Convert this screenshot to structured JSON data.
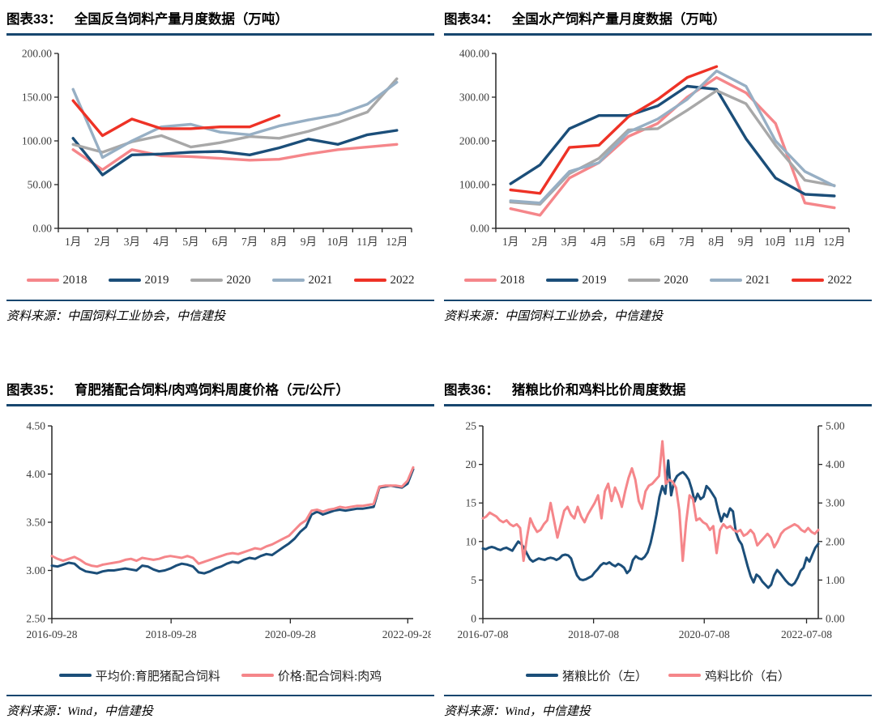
{
  "figures": [
    {
      "label": "图表33：",
      "title": "全国反刍饲料产量月度数据（万吨）",
      "source": "资料来源：中国饲料工业协会，中信建投",
      "chart_data": {
        "type": "line",
        "x_mode": "category",
        "categories": [
          "1月",
          "2月",
          "3月",
          "4月",
          "5月",
          "6月",
          "7月",
          "8月",
          "9月",
          "10月",
          "11月",
          "12月"
        ],
        "ylim": [
          0,
          200
        ],
        "yticks": [
          {
            "v": 0,
            "label": "0.00"
          },
          {
            "v": 50,
            "label": "50.00"
          },
          {
            "v": 100,
            "label": "100.00"
          },
          {
            "v": 150,
            "label": "150.00"
          },
          {
            "v": 200,
            "label": "200.00"
          }
        ],
        "legend_position": "bottom",
        "grid": false,
        "series": [
          {
            "name": "2018",
            "color": "#F5868A",
            "values": [
              90,
              67,
              90,
              83,
              82,
              80,
              78,
              79,
              85,
              90,
              93,
              96
            ]
          },
          {
            "name": "2019",
            "color": "#1B4E79",
            "values": [
              103,
              61,
              84,
              85,
              87,
              88,
              84,
              92,
              102,
              96,
              107,
              112
            ]
          },
          {
            "name": "2020",
            "color": "#A8A8A8",
            "values": [
              96,
              87,
              99,
              106,
              93,
              98,
              105,
              103,
              111,
              121,
              133,
              171
            ]
          },
          {
            "name": "2021",
            "color": "#97AFC4",
            "values": [
              159,
              81,
              100,
              116,
              119,
              110,
              107,
              117,
              124,
              130,
              142,
              167
            ]
          },
          {
            "name": "2022",
            "color": "#EE3226",
            "values": [
              146,
              106,
              125,
              114,
              114,
              116,
              116,
              129
            ]
          }
        ]
      }
    },
    {
      "label": "图表34：",
      "title": "全国水产饲料产量月度数据（万吨）",
      "source": "资料来源：中国饲料工业协会，中信建投",
      "chart_data": {
        "type": "line",
        "x_mode": "category",
        "categories": [
          "1月",
          "2月",
          "3月",
          "4月",
          "5月",
          "6月",
          "7月",
          "8月",
          "9月",
          "10月",
          "11月",
          "12月"
        ],
        "ylim": [
          0,
          400
        ],
        "yticks": [
          {
            "v": 0,
            "label": "0.00"
          },
          {
            "v": 100,
            "label": "100.00"
          },
          {
            "v": 200,
            "label": "200.00"
          },
          {
            "v": 300,
            "label": "300.00"
          },
          {
            "v": 400,
            "label": "400.00"
          }
        ],
        "legend_position": "bottom",
        "grid": false,
        "series": [
          {
            "name": "2018",
            "color": "#F5868A",
            "values": [
              45,
              30,
              115,
              150,
              210,
              240,
              300,
              345,
              310,
              240,
              58,
              47
            ]
          },
          {
            "name": "2019",
            "color": "#1B4E79",
            "values": [
              102,
              145,
              228,
              258,
              258,
              280,
              325,
              318,
              205,
              115,
              78,
              74
            ]
          },
          {
            "name": "2020",
            "color": "#A8A8A8",
            "values": [
              60,
              55,
              125,
              160,
              225,
              228,
              270,
              315,
              285,
              190,
              110,
              98
            ]
          },
          {
            "name": "2021",
            "color": "#97AFC4",
            "values": [
              63,
              58,
              130,
              150,
              220,
              250,
              295,
              360,
              325,
              200,
              130,
              97
            ]
          },
          {
            "name": "2022",
            "color": "#EE3226",
            "values": [
              88,
              80,
              185,
              190,
              255,
              295,
              345,
              370
            ]
          }
        ]
      }
    },
    {
      "label": "图表35：",
      "title": "育肥猪配合饲料/肉鸡饲料周度价格（元/公斤）",
      "source": "资料来源：Wind，中信建投",
      "chart_data": {
        "type": "line",
        "x_mode": "linear",
        "xticks": [
          {
            "pos": 0,
            "label": "2016-09-28"
          },
          {
            "pos": 0.33,
            "label": "2018-09-28"
          },
          {
            "pos": 0.66,
            "label": "2020-09-28"
          },
          {
            "pos": 0.985,
            "label": "2022-09-28"
          }
        ],
        "ylim": [
          2.5,
          4.5
        ],
        "yticks": [
          {
            "v": 2.5,
            "label": "2.50"
          },
          {
            "v": 3.0,
            "label": "3.00"
          },
          {
            "v": 3.5,
            "label": "3.50"
          },
          {
            "v": 4.0,
            "label": "4.00"
          },
          {
            "v": 4.5,
            "label": "4.50"
          }
        ],
        "legend_position": "bottom",
        "grid": false,
        "series": [
          {
            "name": "平均价:育肥猪配合饲料",
            "color": "#1B4E79",
            "values": [
              3.05,
              3.04,
              3.06,
              3.08,
              3.07,
              3.02,
              2.99,
              2.98,
              2.97,
              2.99,
              3.0,
              3.0,
              3.01,
              3.02,
              3.01,
              3.0,
              3.05,
              3.04,
              3.01,
              2.99,
              3.0,
              3.02,
              3.05,
              3.07,
              3.06,
              3.04,
              2.98,
              2.97,
              2.99,
              3.02,
              3.04,
              3.07,
              3.09,
              3.08,
              3.11,
              3.13,
              3.12,
              3.15,
              3.17,
              3.16,
              3.2,
              3.24,
              3.28,
              3.33,
              3.4,
              3.45,
              3.58,
              3.61,
              3.58,
              3.6,
              3.62,
              3.63,
              3.62,
              3.63,
              3.64,
              3.64,
              3.65,
              3.66,
              3.86,
              3.87,
              3.88,
              3.87,
              3.86,
              3.9,
              4.05
            ]
          },
          {
            "name": "价格:配合饲料:肉鸡",
            "color": "#F5868A",
            "values": [
              3.15,
              3.12,
              3.1,
              3.12,
              3.14,
              3.11,
              3.07,
              3.05,
              3.04,
              3.06,
              3.07,
              3.08,
              3.09,
              3.11,
              3.12,
              3.1,
              3.13,
              3.12,
              3.11,
              3.12,
              3.14,
              3.15,
              3.14,
              3.13,
              3.15,
              3.13,
              3.07,
              3.09,
              3.11,
              3.13,
              3.15,
              3.17,
              3.18,
              3.17,
              3.19,
              3.21,
              3.23,
              3.22,
              3.25,
              3.27,
              3.3,
              3.33,
              3.36,
              3.42,
              3.48,
              3.52,
              3.62,
              3.63,
              3.61,
              3.63,
              3.64,
              3.66,
              3.65,
              3.66,
              3.67,
              3.67,
              3.68,
              3.69,
              3.87,
              3.88,
              3.88,
              3.88,
              3.87,
              3.93,
              4.07
            ]
          }
        ]
      }
    },
    {
      "label": "图表36：",
      "title": "猪粮比价和鸡料比价周度数据",
      "source": "资料来源：Wind，中信建投",
      "chart_data": {
        "type": "line",
        "x_mode": "linear",
        "xticks": [
          {
            "pos": 0,
            "label": "2016-07-08"
          },
          {
            "pos": 0.33,
            "label": "2018-07-08"
          },
          {
            "pos": 0.66,
            "label": "2020-07-08"
          },
          {
            "pos": 0.965,
            "label": "2022-07-08"
          }
        ],
        "ylim": [
          0,
          25
        ],
        "yticks": [
          {
            "v": 0,
            "label": "0"
          },
          {
            "v": 5,
            "label": "5"
          },
          {
            "v": 10,
            "label": "10"
          },
          {
            "v": 15,
            "label": "15"
          },
          {
            "v": 20,
            "label": "20"
          },
          {
            "v": 25,
            "label": "25"
          }
        ],
        "y2lim": [
          0,
          5
        ],
        "y2ticks": [
          {
            "v": 0,
            "label": "0.00"
          },
          {
            "v": 1,
            "label": "1.00"
          },
          {
            "v": 2,
            "label": "2.00"
          },
          {
            "v": 3,
            "label": "3.00"
          },
          {
            "v": 4,
            "label": "4.00"
          },
          {
            "v": 5,
            "label": "5.00"
          }
        ],
        "legend_position": "bottom",
        "grid": false,
        "series": [
          {
            "name": "猪粮比价（左）",
            "color": "#1B4E79",
            "axis": "left",
            "values": [
              9.1,
              9.0,
              9.2,
              9.3,
              9.2,
              9.0,
              8.9,
              9.1,
              9.2,
              9.0,
              8.8,
              9.4,
              10.0,
              9.7,
              9.2,
              8.4,
              7.7,
              7.4,
              7.6,
              7.8,
              7.7,
              7.6,
              7.8,
              7.9,
              7.8,
              7.6,
              7.8,
              8.2,
              8.3,
              8.2,
              7.8,
              6.6,
              5.6,
              5.1,
              5.0,
              5.1,
              5.3,
              5.5,
              6.0,
              6.4,
              6.9,
              7.2,
              7.1,
              7.3,
              7.0,
              6.8,
              7.1,
              6.9,
              6.6,
              5.9,
              6.3,
              7.6,
              8.1,
              7.8,
              7.7,
              8.0,
              8.6,
              9.8,
              11.5,
              13.5,
              15.8,
              17.2,
              16.2,
              20.5,
              16.0,
              17.8,
              18.5,
              18.8,
              19.0,
              18.6,
              18.0,
              16.8,
              15.2,
              16.2,
              15.5,
              15.8,
              17.2,
              16.8,
              16.2,
              15.6,
              14.0,
              12.6,
              13.6,
              13.2,
              14.3,
              13.9,
              11.2,
              10.2,
              9.6,
              8.2,
              6.8,
              5.5,
              4.7,
              5.7,
              5.4,
              4.8,
              4.4,
              4.0,
              4.4,
              5.6,
              6.3,
              5.9,
              5.4,
              4.9,
              4.5,
              4.3,
              4.6,
              5.3,
              6.2,
              6.6,
              7.9,
              7.4,
              8.3,
              9.2,
              9.7
            ]
          },
          {
            "name": "鸡料比价（右）",
            "color": "#F5868A",
            "axis": "right",
            "values": [
              2.6,
              2.65,
              2.75,
              2.7,
              2.65,
              2.55,
              2.5,
              2.55,
              2.45,
              2.4,
              2.45,
              2.35,
              1.5,
              2.1,
              2.6,
              2.4,
              2.25,
              2.3,
              2.45,
              2.55,
              3.0,
              2.55,
              2.1,
              2.45,
              2.8,
              2.9,
              2.7,
              2.6,
              2.9,
              2.65,
              2.5,
              2.7,
              2.85,
              3.0,
              3.2,
              2.6,
              3.3,
              3.5,
              3.05,
              3.4,
              3.2,
              2.9,
              3.3,
              3.65,
              3.9,
              3.6,
              3.05,
              2.85,
              3.3,
              3.45,
              3.5,
              3.6,
              3.7,
              4.6,
              3.5,
              3.6,
              3.55,
              3.4,
              2.8,
              1.5,
              2.5,
              3.2,
              3.1,
              2.55,
              2.6,
              2.5,
              2.45,
              2.3,
              2.4,
              1.7,
              2.3,
              2.45,
              2.35,
              2.4,
              2.3,
              2.25,
              2.3,
              2.15,
              2.2,
              2.3,
              2.2,
              1.9,
              2.0,
              2.1,
              2.2,
              2.1,
              1.85,
              2.0,
              2.2,
              2.3,
              2.35,
              2.4,
              2.45,
              2.4,
              2.3,
              2.25,
              2.35,
              2.25,
              2.2,
              2.3
            ]
          }
        ]
      }
    }
  ]
}
